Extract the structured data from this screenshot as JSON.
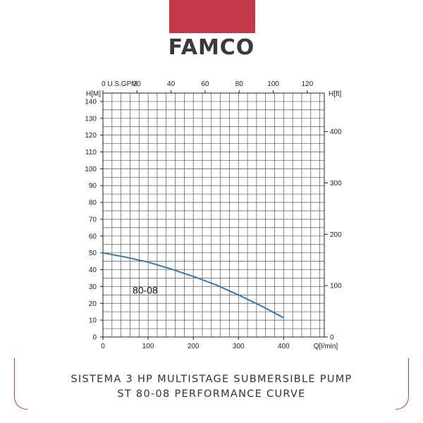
{
  "brand": {
    "logo_text": "FAMCO",
    "banner_color": "#c23a4a"
  },
  "caption": {
    "line1": "SISTEMA 3 HP MULTISTAGE SUBMERSIBLE PUMP",
    "line2": "ST 80-08 PERFORMANCE CURVE"
  },
  "chart_data": {
    "type": "line",
    "x_axis": {
      "label": "Q[l/min]",
      "range": [
        0,
        490
      ],
      "ticks": [
        0,
        100,
        200,
        300,
        400
      ]
    },
    "x2_axis": {
      "label": "U.S.GPM",
      "range": [
        0,
        130
      ],
      "ticks": [
        0,
        20,
        40,
        60,
        80,
        100,
        120
      ]
    },
    "y_axis": {
      "label": "H[M]",
      "range": [
        0,
        145
      ],
      "ticks": [
        0,
        10,
        20,
        30,
        40,
        50,
        60,
        70,
        80,
        90,
        100,
        110,
        120,
        130,
        140
      ]
    },
    "y2_axis": {
      "label": "H[ft]",
      "range": [
        0,
        475
      ],
      "ticks": [
        0,
        100,
        200,
        300,
        400
      ]
    },
    "grid": true,
    "series": [
      {
        "name": "80-08",
        "color": "#2a7ab8",
        "x": [
          0,
          50,
          100,
          150,
          200,
          250,
          300,
          350,
          400
        ],
        "y": [
          50,
          47.5,
          44.5,
          40.5,
          36,
          31,
          25,
          18.5,
          11.5
        ]
      }
    ]
  }
}
